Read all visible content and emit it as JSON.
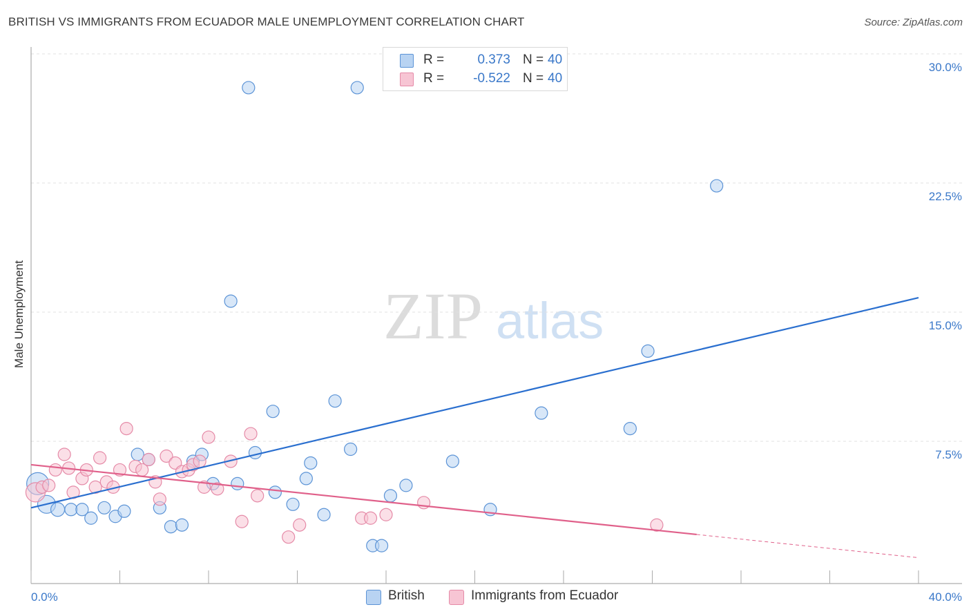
{
  "title": "BRITISH VS IMMIGRANTS FROM ECUADOR MALE UNEMPLOYMENT CORRELATION CHART",
  "source": "Source: ZipAtlas.com",
  "watermark": {
    "zip": "ZIP",
    "atlas": "atlas"
  },
  "colors": {
    "british_fill": "#b8d3f2",
    "british_stroke": "#5b93d6",
    "british_line": "#2a6fcf",
    "ecuador_fill": "#f7c5d4",
    "ecuador_stroke": "#e58aa7",
    "ecuador_line": "#e0608a",
    "axis_text": "#3a78c9",
    "grid": "#e0e0e0"
  },
  "legend_top": {
    "rows": [
      {
        "r_label": "R =",
        "r_value": "0.373",
        "n_label": "N =",
        "n_value": "40"
      },
      {
        "r_label": "R =",
        "r_value": "-0.522",
        "n_label": "N =",
        "n_value": "40"
      }
    ]
  },
  "legend_bottom": {
    "british": "British",
    "ecuador": "Immigrants from Ecuador"
  },
  "chart_data": {
    "type": "scatter",
    "title": "BRITISH VS IMMIGRANTS FROM ECUADOR MALE UNEMPLOYMENT CORRELATION CHART",
    "xlabel": "",
    "ylabel": "Male Unemployment",
    "xlim": [
      0,
      40
    ],
    "ylim": [
      0,
      30
    ],
    "x_tick_labels": [
      "0.0%",
      "40.0%"
    ],
    "y_ticks": [
      7.5,
      15.0,
      22.5,
      30.0
    ],
    "y_tick_labels": [
      "7.5%",
      "15.0%",
      "22.5%",
      "30.0%"
    ],
    "grid": true,
    "legend_position": "bottom",
    "series": [
      {
        "name": "British",
        "r": 0.373,
        "n": 40,
        "trend": {
          "x": [
            0,
            40
          ],
          "y": [
            4.4,
            16.6
          ],
          "dashed_from": null
        },
        "points": [
          [
            0.3,
            5.8,
            16
          ],
          [
            0.7,
            4.6,
            13
          ],
          [
            1.2,
            4.3,
            10
          ],
          [
            1.8,
            4.3,
            9
          ],
          [
            2.3,
            4.3,
            9
          ],
          [
            2.7,
            3.8,
            9
          ],
          [
            3.3,
            4.4,
            9
          ],
          [
            3.8,
            3.9,
            9
          ],
          [
            4.2,
            4.2,
            9
          ],
          [
            4.8,
            7.5,
            9
          ],
          [
            5.3,
            7.2,
            9
          ],
          [
            5.8,
            4.4,
            9
          ],
          [
            6.3,
            3.3,
            9
          ],
          [
            6.8,
            3.4,
            9
          ],
          [
            7.3,
            7.1,
            9
          ],
          [
            7.7,
            7.5,
            9
          ],
          [
            8.2,
            5.8,
            9
          ],
          [
            9.0,
            16.4,
            9
          ],
          [
            9.3,
            5.8,
            9
          ],
          [
            9.8,
            28.8,
            9
          ],
          [
            10.1,
            7.6,
            9
          ],
          [
            10.9,
            10.0,
            9
          ],
          [
            11.0,
            5.3,
            9
          ],
          [
            11.8,
            4.6,
            9
          ],
          [
            12.4,
            6.1,
            9
          ],
          [
            12.6,
            7.0,
            9
          ],
          [
            13.2,
            4.0,
            9
          ],
          [
            13.7,
            10.6,
            9
          ],
          [
            14.4,
            7.8,
            9
          ],
          [
            14.7,
            28.8,
            9
          ],
          [
            15.4,
            2.2,
            9
          ],
          [
            15.8,
            2.2,
            9
          ],
          [
            16.2,
            5.1,
            9
          ],
          [
            16.9,
            5.7,
            9
          ],
          [
            19.0,
            7.1,
            9
          ],
          [
            20.7,
            4.3,
            9
          ],
          [
            23.0,
            9.9,
            9
          ],
          [
            27.0,
            9.0,
            9
          ],
          [
            27.8,
            13.5,
            9
          ],
          [
            30.9,
            23.1,
            9
          ]
        ]
      },
      {
        "name": "Immigrants from Ecuador",
        "r": -0.522,
        "n": 40,
        "trend": {
          "x": [
            0,
            40
          ],
          "y": [
            6.9,
            1.5
          ],
          "dashed_from": 30.0
        },
        "points": [
          [
            0.2,
            5.3,
            14
          ],
          [
            0.5,
            5.6,
            9
          ],
          [
            0.8,
            5.7,
            9
          ],
          [
            1.1,
            6.6,
            9
          ],
          [
            1.5,
            7.5,
            9
          ],
          [
            1.7,
            6.7,
            9
          ],
          [
            1.9,
            5.3,
            9
          ],
          [
            2.3,
            6.1,
            9
          ],
          [
            2.5,
            6.6,
            9
          ],
          [
            2.9,
            5.6,
            9
          ],
          [
            3.1,
            7.3,
            9
          ],
          [
            3.4,
            5.9,
            9
          ],
          [
            3.7,
            5.6,
            9
          ],
          [
            4.0,
            6.6,
            9
          ],
          [
            4.3,
            9.0,
            9
          ],
          [
            4.7,
            6.8,
            9
          ],
          [
            5.0,
            6.6,
            9
          ],
          [
            5.3,
            7.2,
            9
          ],
          [
            5.6,
            5.9,
            9
          ],
          [
            5.8,
            4.9,
            9
          ],
          [
            6.1,
            7.4,
            9
          ],
          [
            6.5,
            7.0,
            9
          ],
          [
            6.8,
            6.5,
            9
          ],
          [
            7.1,
            6.6,
            9
          ],
          [
            7.3,
            6.9,
            9
          ],
          [
            7.6,
            7.1,
            9
          ],
          [
            7.8,
            5.6,
            9
          ],
          [
            8.0,
            8.5,
            9
          ],
          [
            8.4,
            5.5,
            9
          ],
          [
            9.0,
            7.1,
            9
          ],
          [
            9.5,
            3.6,
            9
          ],
          [
            9.9,
            8.7,
            9
          ],
          [
            10.2,
            5.1,
            9
          ],
          [
            11.6,
            2.7,
            9
          ],
          [
            12.1,
            3.4,
            9
          ],
          [
            14.9,
            3.8,
            9
          ],
          [
            15.3,
            3.8,
            9
          ],
          [
            16.0,
            4.0,
            9
          ],
          [
            17.7,
            4.7,
            9
          ],
          [
            28.2,
            3.4,
            9
          ]
        ]
      }
    ]
  }
}
